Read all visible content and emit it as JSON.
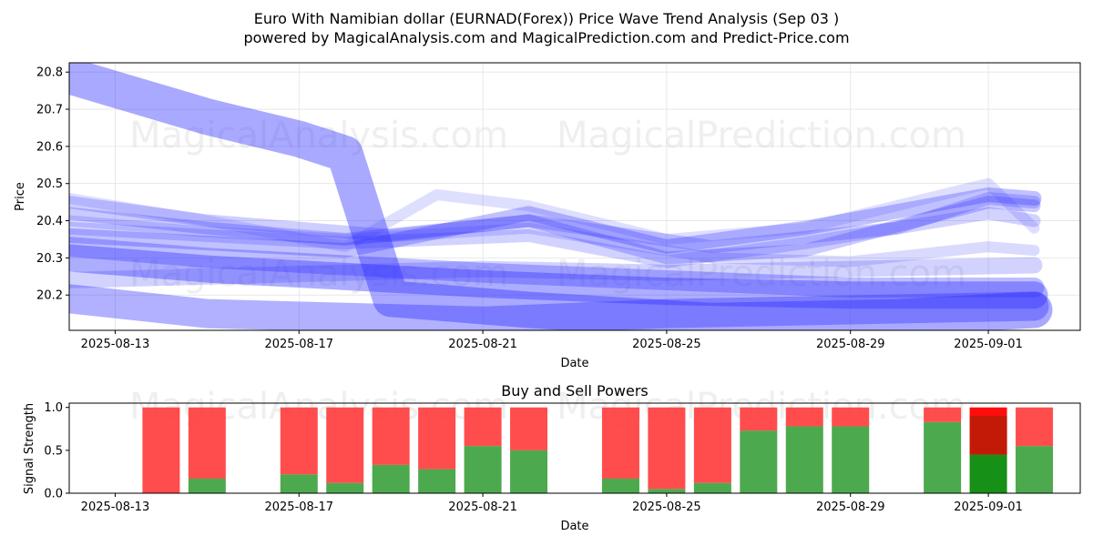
{
  "title_line1": "Euro With Namibian dollar (EURNAD(Forex)) Price Wave Trend Analysis (Sep 03 )",
  "title_line2": "powered by MagicalAnalysis.com and MagicalPrediction.com and Predict-Price.com",
  "watermarks": [
    "MagicalAnalysis.com",
    "MagicalPrediction.com"
  ],
  "colors": {
    "wave": "#3333ff",
    "buy": "#2e9a2e",
    "sell": "#ff3a3a",
    "strong_buy": "#0a8a0a",
    "strong_sell": "#ff0000"
  },
  "chart_data": [
    {
      "type": "line",
      "title": "",
      "xlabel": "Date",
      "ylabel": "Price",
      "xlim": [
        "2025-08-12",
        "2025-09-03"
      ],
      "ylim": [
        20.105,
        20.825
      ],
      "x_ticks": [
        "2025-08-13",
        "2025-08-17",
        "2025-08-21",
        "2025-08-25",
        "2025-08-29",
        "2025-09-01"
      ],
      "y_ticks": [
        20.2,
        20.3,
        20.4,
        20.5,
        20.6,
        20.7,
        20.8
      ],
      "grid": true,
      "series": [
        {
          "name": "wave-1",
          "x": [
            "2025-08-12",
            "2025-08-15",
            "2025-08-17",
            "2025-08-18",
            "2025-08-19",
            "2025-08-22",
            "2025-08-26",
            "2025-08-30",
            "2025-09-02"
          ],
          "values": [
            20.79,
            20.68,
            20.62,
            20.58,
            20.19,
            20.16,
            20.13,
            20.14,
            20.16
          ],
          "width": 40,
          "opacity": 0.42
        },
        {
          "name": "wave-2",
          "x": [
            "2025-08-12",
            "2025-08-15",
            "2025-08-18",
            "2025-08-21",
            "2025-08-25",
            "2025-08-29",
            "2025-09-02"
          ],
          "values": [
            20.19,
            20.15,
            20.14,
            20.13,
            20.15,
            20.16,
            20.17
          ],
          "width": 32,
          "opacity": 0.38
        },
        {
          "name": "wave-3",
          "x": [
            "2025-08-12",
            "2025-08-15",
            "2025-08-18",
            "2025-08-21",
            "2025-08-25",
            "2025-08-29",
            "2025-09-02"
          ],
          "values": [
            20.3,
            20.27,
            20.25,
            20.23,
            20.21,
            20.2,
            20.2
          ],
          "width": 30,
          "opacity": 0.4
        },
        {
          "name": "wave-4",
          "x": [
            "2025-08-12",
            "2025-08-15",
            "2025-08-18",
            "2025-08-21",
            "2025-08-25",
            "2025-08-29",
            "2025-09-02"
          ],
          "values": [
            20.33,
            20.3,
            20.28,
            20.26,
            20.24,
            20.22,
            20.22
          ],
          "width": 22,
          "opacity": 0.32
        },
        {
          "name": "wave-5",
          "x": [
            "2025-08-12",
            "2025-08-15",
            "2025-08-18",
            "2025-08-21",
            "2025-08-25",
            "2025-08-29",
            "2025-09-02"
          ],
          "values": [
            20.24,
            20.25,
            20.26,
            20.27,
            20.26,
            20.27,
            20.28
          ],
          "width": 18,
          "opacity": 0.22
        },
        {
          "name": "wave-6",
          "x": [
            "2025-08-12",
            "2025-08-15",
            "2025-08-18",
            "2025-08-22",
            "2025-08-25",
            "2025-08-28",
            "2025-09-01",
            "2025-09-02"
          ],
          "values": [
            20.36,
            20.34,
            20.32,
            20.42,
            20.33,
            20.38,
            20.47,
            20.46
          ],
          "width": 16,
          "opacity": 0.3
        },
        {
          "name": "wave-7",
          "x": [
            "2025-08-12",
            "2025-08-15",
            "2025-08-18",
            "2025-08-22",
            "2025-08-25",
            "2025-08-28",
            "2025-09-01",
            "2025-09-02"
          ],
          "values": [
            20.42,
            20.38,
            20.35,
            20.4,
            20.3,
            20.32,
            20.45,
            20.44
          ],
          "width": 14,
          "opacity": 0.26
        },
        {
          "name": "wave-8",
          "x": [
            "2025-08-12",
            "2025-08-15",
            "2025-08-18",
            "2025-08-20",
            "2025-08-22",
            "2025-08-25",
            "2025-08-28",
            "2025-09-01",
            "2025-09-02"
          ],
          "values": [
            20.46,
            20.4,
            20.33,
            20.47,
            20.44,
            20.35,
            20.38,
            20.5,
            20.38
          ],
          "width": 12,
          "opacity": 0.16
        },
        {
          "name": "wave-9",
          "x": [
            "2025-08-12",
            "2025-08-15",
            "2025-08-18",
            "2025-08-22",
            "2025-08-26",
            "2025-08-29",
            "2025-09-01",
            "2025-09-02"
          ],
          "values": [
            20.4,
            20.37,
            20.35,
            20.38,
            20.3,
            20.29,
            20.33,
            20.32
          ],
          "width": 12,
          "opacity": 0.18
        },
        {
          "name": "wave-10",
          "x": [
            "2025-08-12",
            "2025-08-15",
            "2025-08-19",
            "2025-08-22",
            "2025-08-26",
            "2025-08-30",
            "2025-09-01",
            "2025-09-02"
          ],
          "values": [
            20.45,
            20.4,
            20.36,
            20.4,
            20.33,
            20.38,
            20.46,
            20.45
          ],
          "width": 14,
          "opacity": 0.24
        },
        {
          "name": "wave-11",
          "x": [
            "2025-08-12",
            "2025-08-15",
            "2025-08-18",
            "2025-08-22",
            "2025-08-25",
            "2025-08-28",
            "2025-09-01",
            "2025-09-02"
          ],
          "values": [
            20.38,
            20.36,
            20.34,
            20.36,
            20.29,
            20.34,
            20.42,
            20.4
          ],
          "width": 14,
          "opacity": 0.22
        }
      ]
    },
    {
      "type": "bar",
      "title": "Buy and Sell Powers",
      "xlabel": "Date",
      "ylabel": "Signal Strength",
      "xlim": [
        "2025-08-12",
        "2025-09-03"
      ],
      "ylim": [
        0,
        1.05
      ],
      "x_ticks": [
        "2025-08-13",
        "2025-08-17",
        "2025-08-21",
        "2025-08-25",
        "2025-08-29",
        "2025-09-01"
      ],
      "y_ticks": [
        0.0,
        0.5,
        1.0
      ],
      "categories": [
        "2025-08-14",
        "2025-08-15",
        "2025-08-17",
        "2025-08-18",
        "2025-08-19",
        "2025-08-20",
        "2025-08-21",
        "2025-08-22",
        "2025-08-24",
        "2025-08-25",
        "2025-08-26",
        "2025-08-27",
        "2025-08-28",
        "2025-08-29",
        "2025-08-31",
        "2025-09-01",
        "2025-09-02"
      ],
      "series": [
        {
          "name": "Buy",
          "values": [
            0.0,
            0.17,
            0.22,
            0.12,
            0.33,
            0.28,
            0.55,
            0.5,
            0.17,
            0.05,
            0.12,
            0.73,
            0.78,
            0.78,
            0.83,
            0.45,
            0.55
          ]
        },
        {
          "name": "Sell",
          "values": [
            1.0,
            0.83,
            0.78,
            0.88,
            0.67,
            0.72,
            0.45,
            0.5,
            0.83,
            0.95,
            0.88,
            0.27,
            0.22,
            0.22,
            0.17,
            0.55,
            0.45
          ]
        }
      ]
    }
  ]
}
